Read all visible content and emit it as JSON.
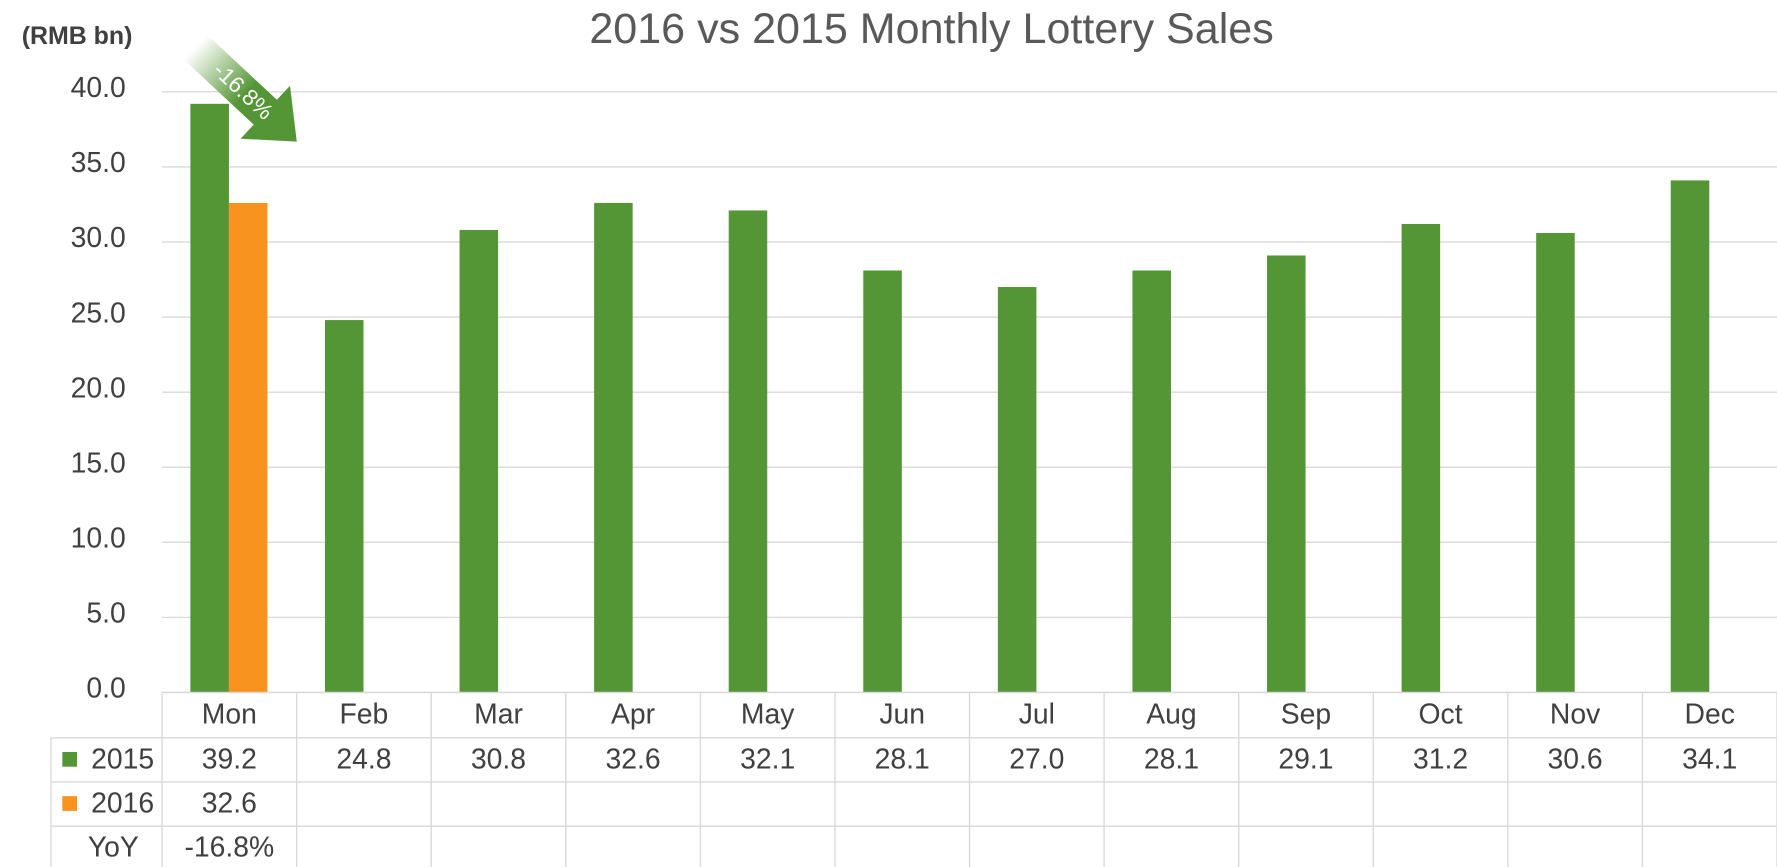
{
  "chart_data": {
    "type": "bar",
    "title": "2016 vs 2015 Monthly Lottery Sales",
    "y_label": "(RMB bn)",
    "categories": [
      "Mon",
      "Feb",
      "Mar",
      "Apr",
      "May",
      "Jun",
      "Jul",
      "Aug",
      "Sep",
      "Oct",
      "Nov",
      "Dec"
    ],
    "series": [
      {
        "name": "2015",
        "color": "#549535",
        "values": [
          39.2,
          24.8,
          30.8,
          32.6,
          32.1,
          28.1,
          27.0,
          28.1,
          29.1,
          31.2,
          30.6,
          34.1
        ],
        "value_labels": [
          "39.2",
          "24.8",
          "30.8",
          "32.6",
          "32.1",
          "28.1",
          "27.0",
          "28.1",
          "29.1",
          "31.2",
          "30.6",
          "34.1"
        ]
      },
      {
        "name": "2016",
        "color": "#f7931e",
        "values": [
          32.6,
          null,
          null,
          null,
          null,
          null,
          null,
          null,
          null,
          null,
          null,
          null
        ],
        "value_labels": [
          "32.6",
          null,
          null,
          null,
          null,
          null,
          null,
          null,
          null,
          null,
          null,
          null
        ]
      }
    ],
    "yoy": {
      "name": "YoY",
      "values": [
        -16.8,
        null,
        null,
        null,
        null,
        null,
        null,
        null,
        null,
        null,
        null,
        null
      ],
      "value_labels": [
        "-16.8%",
        null,
        null,
        null,
        null,
        null,
        null,
        null,
        null,
        null,
        null,
        null
      ]
    },
    "annotation": {
      "text": "-16.8%",
      "color": "#549535"
    },
    "ylim": [
      0,
      40
    ],
    "yticks": [
      {
        "value": 0,
        "label": "0.0"
      },
      {
        "value": 5,
        "label": "5.0"
      },
      {
        "value": 10,
        "label": "10.0"
      },
      {
        "value": 15,
        "label": "15.0"
      },
      {
        "value": 20,
        "label": "20.0"
      },
      {
        "value": 25,
        "label": "25.0"
      },
      {
        "value": 30,
        "label": "30.0"
      },
      {
        "value": 35,
        "label": "35.0"
      },
      {
        "value": 40,
        "label": "40.0"
      }
    ],
    "grid": true
  }
}
